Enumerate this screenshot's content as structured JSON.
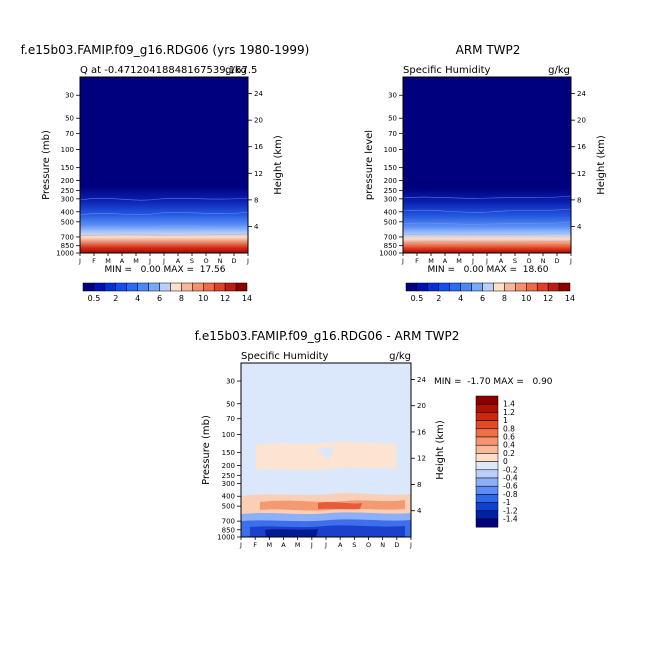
{
  "panels": [
    {
      "title": "f.e15b03.FAMIP.f09_g16.RDG06 (yrs 1980-1999)",
      "subtitle_left": "Q at -0.47120418848167539,167.5",
      "units": "g/kg",
      "ylabel": "Pressure (mb)",
      "y2label": "Height (km)",
      "minmax": "MIN =   0.00 MAX =  17.56"
    },
    {
      "title": "ARM TWP2",
      "subtitle_left": "Specific Humidity",
      "units": "g/kg",
      "ylabel": "pressure level",
      "y2label": "Height (km)",
      "minmax": "MIN =   0.00 MAX =  18.60"
    },
    {
      "title": "f.e15b03.FAMIP.f09_g16.RDG06 - ARM TWP2",
      "subtitle_left": "Specific Humidity",
      "units": "g/kg",
      "ylabel": "Pressure (mb)",
      "y2label": "Height (km)",
      "minmax": "MIN =  -1.70 MAX =   0.90"
    }
  ],
  "chart_data": [
    {
      "type": "heatmap",
      "title": "f.e15b03.FAMIP.f09_g16.RDG06 (yrs 1980-1999)",
      "xlabel": "",
      "ylabel": "Pressure (mb)",
      "y2label": "Height (km)",
      "x_ticks": [
        "J",
        "F",
        "M",
        "A",
        "M",
        "J",
        "J",
        "A",
        "S",
        "O",
        "N",
        "D",
        "J"
      ],
      "y_ticks": [
        30,
        50,
        70,
        100,
        150,
        200,
        250,
        300,
        400,
        500,
        700,
        850,
        1000
      ],
      "y2_ticks": [
        4,
        8,
        12,
        16,
        20,
        24
      ],
      "ylim": [
        1000,
        20
      ],
      "y_scale": "log",
      "min": 0.0,
      "max": 17.56,
      "field": "specific humidity, increasing toward the surface; near 0 above 300 mb"
    },
    {
      "type": "heatmap",
      "title": "ARM TWP2",
      "xlabel": "",
      "ylabel": "pressure level",
      "y2label": "Height (km)",
      "x_ticks": [
        "J",
        "F",
        "M",
        "A",
        "M",
        "J",
        "J",
        "A",
        "S",
        "O",
        "N",
        "D",
        "J"
      ],
      "y_ticks": [
        30,
        50,
        70,
        100,
        150,
        200,
        250,
        300,
        400,
        500,
        700,
        850,
        1000
      ],
      "y2_ticks": [
        4,
        8,
        12,
        16,
        20,
        24
      ],
      "ylim": [
        1000,
        20
      ],
      "y_scale": "log",
      "min": 0.0,
      "max": 18.6
    },
    {
      "type": "heatmap",
      "title": "f.e15b03.FAMIP.f09_g16.RDG06 - ARM TWP2",
      "xlabel": "",
      "ylabel": "Pressure (mb)",
      "y2label": "Height (km)",
      "x_ticks": [
        "J",
        "F",
        "M",
        "A",
        "M",
        "J",
        "J",
        "A",
        "S",
        "O",
        "N",
        "D",
        "J"
      ],
      "y_ticks": [
        30,
        50,
        70,
        100,
        150,
        200,
        250,
        300,
        400,
        500,
        700,
        850,
        1000
      ],
      "y2_ticks": [
        4,
        8,
        12,
        16,
        20,
        24
      ],
      "ylim": [
        1000,
        20
      ],
      "y_scale": "log",
      "min": -1.7,
      "max": 0.9
    }
  ],
  "colorbar_top": {
    "labels": [
      "0.5",
      "2",
      "4",
      "6",
      "8",
      "10",
      "12",
      "14"
    ],
    "colors": [
      "#00007f",
      "#0010b8",
      "#0030d8",
      "#1050ee",
      "#2a6af4",
      "#4a88f6",
      "#7aa8f8",
      "#b8d0fb",
      "#fde0cc",
      "#f9b79a",
      "#f5906c",
      "#ee6a48",
      "#e04028",
      "#c21c12",
      "#8c0000"
    ]
  },
  "colorbar_diff": {
    "labels": [
      "1.4",
      "1.2",
      "1",
      "0.8",
      "0.6",
      "0.4",
      "0.2",
      "0",
      "-0.2",
      "-0.4",
      "-0.6",
      "-0.8",
      "-1",
      "-1.2",
      "-1.4"
    ],
    "colors": [
      "#8c0000",
      "#b01000",
      "#cc2810",
      "#e04c28",
      "#ee7048",
      "#f59470",
      "#f9b898",
      "#fddcc8",
      "#dce8fa",
      "#b8d0fb",
      "#8cb0f8",
      "#5c8cf4",
      "#3068ec",
      "#1040d0",
      "#0020a8",
      "#00007f"
    ]
  }
}
